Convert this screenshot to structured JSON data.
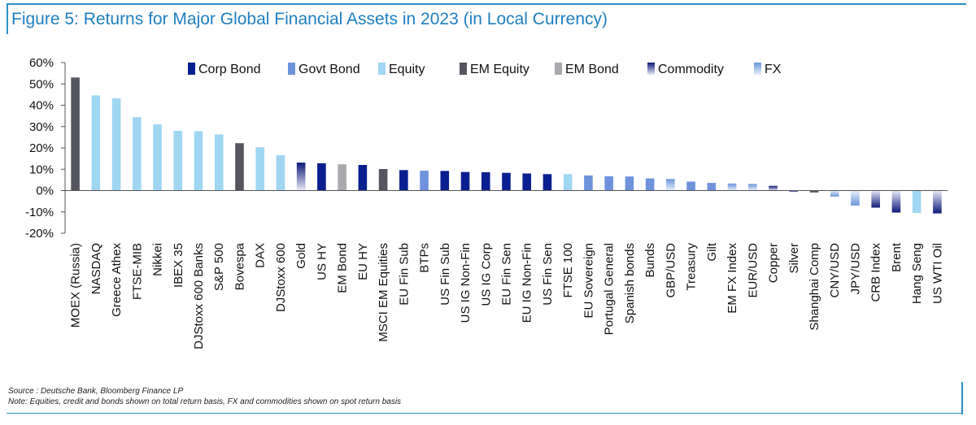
{
  "title": "Figure 5: Returns for Major Global Financial Assets in 2023 (in Local Currency)",
  "source": "Source : Deutsche Bank, Bloomberg Finance LP",
  "note": "Note: Equities, credit and bonds shown on total return basis, FX and commodities shown on spot return basis",
  "colors": {
    "corp_bond": "#0a1f8f",
    "govt_bond": "#6e93dc",
    "equity": "#9fd6f2",
    "em_equity": "#55555f",
    "em_bond": "#a7a9ad",
    "commodity_dark": "#0d1a78",
    "commodity_light": "#e8eaf6",
    "fx_dark": "#6a95d8",
    "fx_light": "#e6f0fb",
    "title": "#1f7fc0",
    "frame": "#2a8fc9"
  },
  "chart_data": {
    "type": "bar",
    "title": "Figure 5: Returns for Major Global Financial Assets in 2023 (in Local Currency)",
    "ylim": [
      -20,
      60
    ],
    "yticks": [
      "-20%",
      "-10%",
      "0%",
      "10%",
      "20%",
      "30%",
      "40%",
      "50%",
      "60%"
    ],
    "ytick_values": [
      -20,
      -10,
      0,
      10,
      20,
      30,
      40,
      50,
      60
    ],
    "unit": "%",
    "grid": false,
    "legend_position": "top",
    "legend": [
      {
        "label": "Corp Bond",
        "key": "corp_bond"
      },
      {
        "label": "Govt Bond",
        "key": "govt_bond"
      },
      {
        "label": "Equity",
        "key": "equity"
      },
      {
        "label": "EM Equity",
        "key": "em_equity"
      },
      {
        "label": "EM Bond",
        "key": "em_bond"
      },
      {
        "label": "Commodity",
        "key": "commodity"
      },
      {
        "label": "FX",
        "key": "fx"
      }
    ],
    "categories": [
      "MOEX (Russia)",
      "NASDAQ",
      "Greece Athex",
      "FTSE-MIB",
      "Nikkei",
      "IBEX 35",
      "DJStoxx 600 Banks",
      "S&P 500",
      "Bovespa",
      "DAX",
      "DJStoxx 600",
      "Gold",
      "US HY",
      "EM Bond",
      "EU HY",
      "MSCI EM Equities",
      "EU Fin Sub",
      "BTPs",
      "US Fin Sub",
      "US IG Non-Fin",
      "US IG Corp",
      "EU Fin Sen",
      "EU IG Non-Fin",
      "US Fin Sen",
      "FTSE 100",
      "EU Sovereign",
      "Portugal General",
      "Spanish bonds",
      "Bunds",
      "GBP/USD",
      "Treasury",
      "Gilt",
      "EM FX Index",
      "EUR/USD",
      "Copper",
      "Silver",
      "Shanghai Comp",
      "CNY/USD",
      "JPY/USD",
      "CRB Index",
      "Brent",
      "Hang Seng",
      "US WTI Oil"
    ],
    "values": [
      53.0,
      44.6,
      43.2,
      34.4,
      31.0,
      28.0,
      27.8,
      26.3,
      22.2,
      20.3,
      16.6,
      13.1,
      12.8,
      12.3,
      12.0,
      10.1,
      9.6,
      9.3,
      9.2,
      8.7,
      8.6,
      8.3,
      8.0,
      7.7,
      7.7,
      7.1,
      6.7,
      6.6,
      5.7,
      5.4,
      4.2,
      3.6,
      3.3,
      3.1,
      2.2,
      -0.6,
      -0.9,
      -2.8,
      -7.0,
      -8.0,
      -10.3,
      -10.5,
      -10.7
    ],
    "asset_class": [
      "em_equity",
      "equity",
      "equity",
      "equity",
      "equity",
      "equity",
      "equity",
      "equity",
      "em_equity",
      "equity",
      "equity",
      "commodity",
      "corp_bond",
      "em_bond",
      "corp_bond",
      "em_equity",
      "corp_bond",
      "govt_bond",
      "corp_bond",
      "corp_bond",
      "corp_bond",
      "corp_bond",
      "corp_bond",
      "corp_bond",
      "equity",
      "govt_bond",
      "govt_bond",
      "govt_bond",
      "govt_bond",
      "fx",
      "govt_bond",
      "govt_bond",
      "fx",
      "fx",
      "commodity",
      "commodity",
      "em_equity",
      "fx",
      "fx",
      "commodity",
      "commodity",
      "equity",
      "commodity"
    ]
  }
}
